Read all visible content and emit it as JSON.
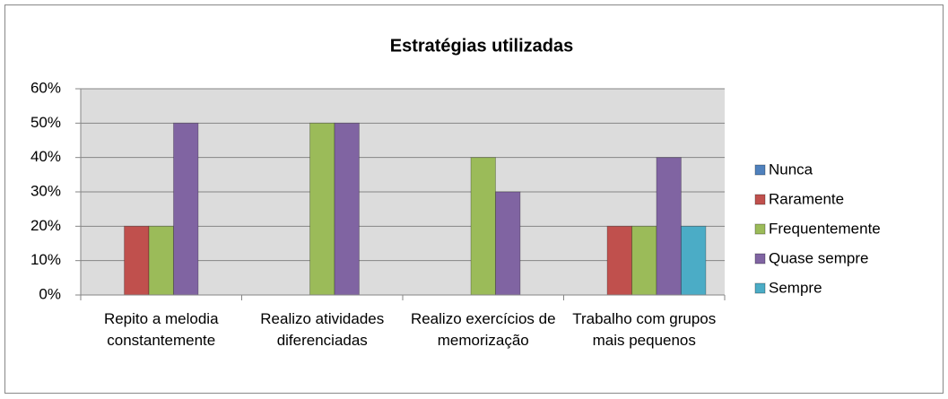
{
  "chart_data": {
    "type": "bar",
    "title": "Estratégias utilizadas",
    "categories": [
      "Repito a melodia constantemente",
      "Realizo atividades diferenciadas",
      "Realizo exercícios de memorização",
      "Trabalho com grupos mais pequenos"
    ],
    "series": [
      {
        "name": "Nunca",
        "color": "#4f81bd",
        "values": [
          0,
          0,
          0,
          0
        ]
      },
      {
        "name": "Raramente",
        "color": "#c0504d",
        "values": [
          20,
          0,
          0,
          20
        ]
      },
      {
        "name": "Frequentemente",
        "color": "#9bbb59",
        "values": [
          20,
          50,
          40,
          20
        ]
      },
      {
        "name": "Quase sempre",
        "color": "#8064a2",
        "values": [
          50,
          50,
          30,
          40
        ]
      },
      {
        "name": "Sempre",
        "color": "#4bacc6",
        "values": [
          0,
          0,
          0,
          20
        ]
      }
    ],
    "ylim": [
      0,
      60
    ],
    "yticks": [
      {
        "value": 0,
        "label": "0%"
      },
      {
        "value": 10,
        "label": "10%"
      },
      {
        "value": 20,
        "label": "20%"
      },
      {
        "value": 30,
        "label": "30%"
      },
      {
        "value": 40,
        "label": "40%"
      },
      {
        "value": 50,
        "label": "50%"
      },
      {
        "value": 60,
        "label": "60%"
      }
    ],
    "grid": true,
    "legend": "right"
  }
}
